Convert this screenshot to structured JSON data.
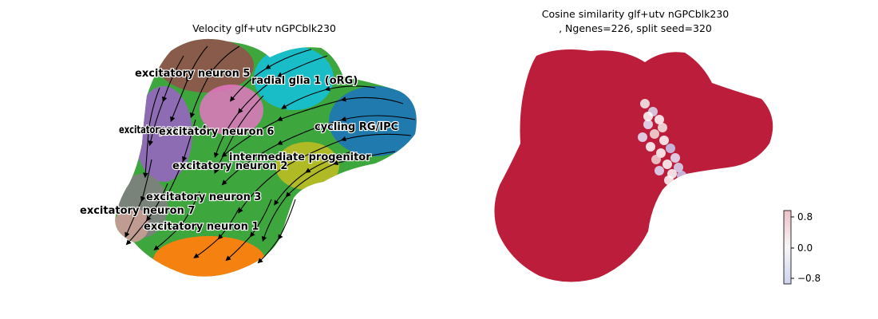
{
  "chart_data": [
    {
      "type": "scatter",
      "subtype": "umap-embedding-with-velocity-streamlines",
      "title": "Velocity glf+utv nGPCblk230",
      "axes_visible": false,
      "grid": false,
      "legend": "on-data labels",
      "clusters": [
        {
          "name": "excitatory neuron 5",
          "color": "#8c564b"
        },
        {
          "name": "radial glia 1 (oRG)",
          "color": "#17becf"
        },
        {
          "name": "excitatory neuron 4",
          "color": "#9467bd"
        },
        {
          "name": "excitatory neuron 6",
          "color": "#e377c2"
        },
        {
          "name": "cycling RG/IPC",
          "color": "#1f77b4"
        },
        {
          "name": "intermediate progenitor",
          "color": "#bcbd22"
        },
        {
          "name": "excitatory neuron 2",
          "color": "#2ca02c"
        },
        {
          "name": "excitatory neuron 3",
          "color": "#7f7f7f"
        },
        {
          "name": "excitatory neuron 7",
          "color": "#c49c94"
        },
        {
          "name": "excitatory neuron 1",
          "color": "#ff7f0e"
        }
      ],
      "labels": [
        "excitatory neuron 5",
        "radial glia 1 (oRG)",
        "excitatory neuron 4",
        "excitatory neuron 6",
        "cycling RG/IPC",
        "intermediate progenitor",
        "excitatory neuron 2",
        "excitatory neuron 3",
        "excitatory neuron 7",
        "excitatory neuron 1"
      ],
      "streamline_color": "#000000"
    },
    {
      "type": "scatter",
      "subtype": "umap-embedding-colored-by-value",
      "title_line1": "Cosine similarity glf+utv nGPCblk230",
      "title_line2": ", Ngenes=226, split seed=320",
      "axes_visible": false,
      "grid": false,
      "colorbar": {
        "ticks": [
          "0.8",
          "0.0",
          "−0.8"
        ],
        "range": [
          -0.9,
          0.9
        ],
        "colormap": "coolwarm",
        "low_color": "#3b4cc0",
        "mid_color": "#dddddd",
        "high_color": "#b40426"
      },
      "dominant_color": "#b40426",
      "note_region_values": "most cells near 0.9; mixed values near 0 to -0.8 in the junction region"
    }
  ]
}
